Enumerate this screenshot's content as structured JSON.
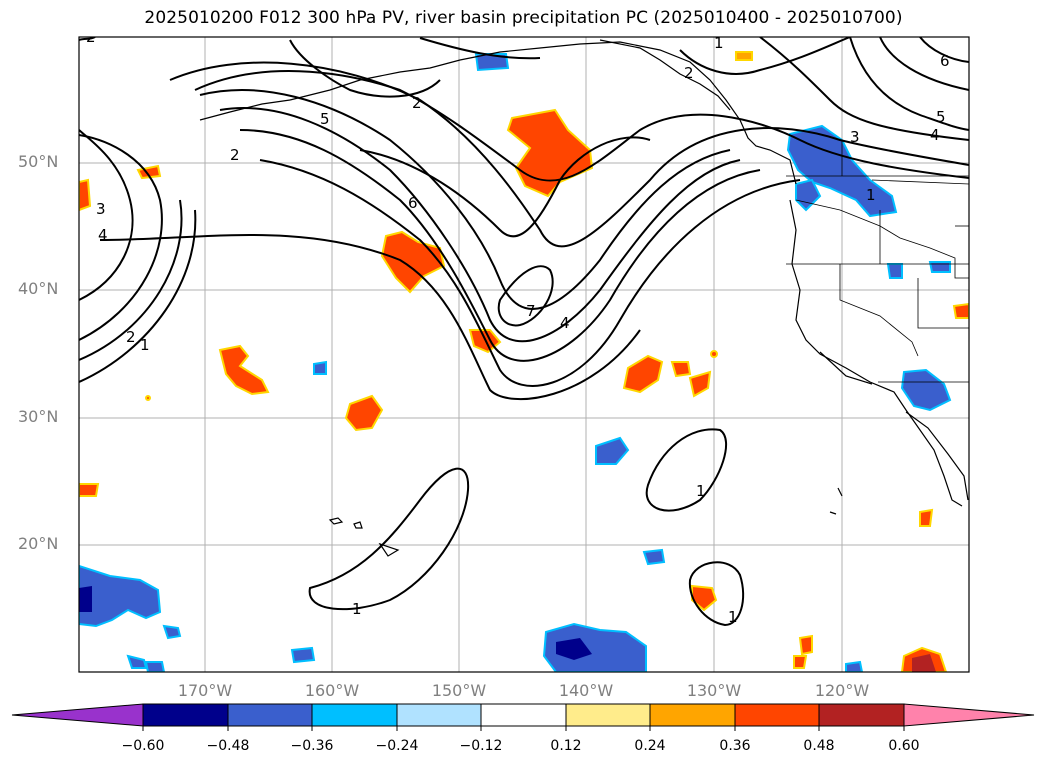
{
  "title": "2025010200 F012 300 hPa PV, river basin precipitation PC (2025010400 - 2025010700)",
  "lat_labels": [
    {
      "text": "50°N",
      "lat": 50
    },
    {
      "text": "40°N",
      "lat": 40
    },
    {
      "text": "30°N",
      "lat": 30
    },
    {
      "text": "20°N",
      "lat": 20
    }
  ],
  "lon_labels": [
    {
      "text": "170°W",
      "lon": -170
    },
    {
      "text": "160°W",
      "lon": -160
    },
    {
      "text": "150°W",
      "lon": -150
    },
    {
      "text": "140°W",
      "lon": -140
    },
    {
      "text": "130°W",
      "lon": -130
    },
    {
      "text": "120°W",
      "lon": -120
    }
  ],
  "contour_labels": [
    "2",
    "5",
    "2",
    "3",
    "4",
    "6",
    "2",
    "1",
    "7",
    "4",
    "1",
    "1",
    "1",
    "3",
    "4",
    "5",
    "6",
    "2",
    "1",
    "2",
    "1"
  ],
  "colorbar": {
    "ticks": [
      "−0.60",
      "−0.48",
      "−0.36",
      "−0.24",
      "−0.12",
      "0.12",
      "0.24",
      "0.36",
      "0.48",
      "0.60"
    ],
    "colors": [
      "#9932cc",
      "#00008b",
      "#3a5fcd",
      "#00bfff",
      "#b0e2ff",
      "#ffffff",
      "#ffec8b",
      "#ffa500",
      "#ff4500",
      "#b22222",
      "#ff82ab"
    ]
  }
}
